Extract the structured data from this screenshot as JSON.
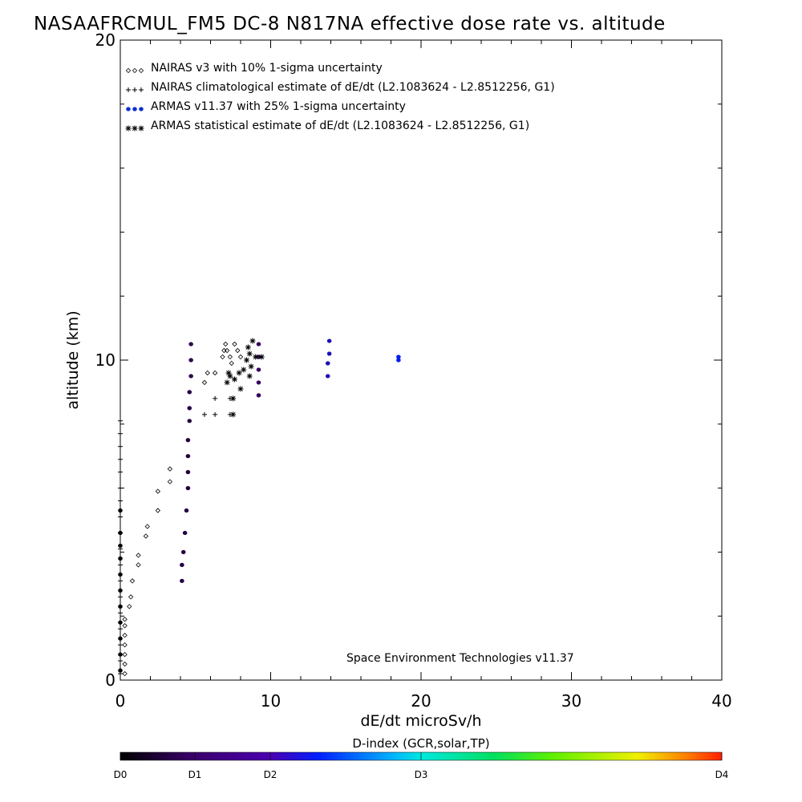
{
  "chart_data": {
    "type": "scatter",
    "title": "NASAAFRCMUL_FM5 DC-8   N817NA effective dose rate vs. altitude",
    "xlabel": "dE/dt microSv/h",
    "ylabel": "altitude (km)",
    "xlim": [
      0,
      40
    ],
    "ylim": [
      0,
      20
    ],
    "x_ticks": [
      "0",
      "10",
      "20",
      "30",
      "40"
    ],
    "y_ticks": [
      "0",
      "10",
      "20"
    ],
    "credit": "Space Environment Technologies v11.37",
    "legend_placement": "top-left",
    "legend": [
      {
        "marker": "diamond",
        "label": "NAIRAS v3 with 10% 1-sigma uncertainty"
      },
      {
        "marker": "plus",
        "label": "NAIRAS climatological estimate of dE/dt (L2.1083624 - L2.8512256, G1)"
      },
      {
        "marker": "dot",
        "label": "ARMAS v11.37 with 25% 1-sigma uncertainty"
      },
      {
        "marker": "asterisk",
        "label": "ARMAS statistical estimate of dE/dt (L2.1083624 - L2.8512256, G1)"
      }
    ],
    "series": [
      {
        "marker": "diamond",
        "points": [
          [
            0.3,
            0.2
          ],
          [
            0.3,
            0.5
          ],
          [
            0.3,
            0.8
          ],
          [
            0.3,
            1.1
          ],
          [
            0.3,
            1.4
          ],
          [
            0.3,
            1.7
          ],
          [
            0.3,
            1.9
          ],
          [
            0.6,
            2.3
          ],
          [
            0.7,
            2.6
          ],
          [
            0.8,
            3.1
          ],
          [
            1.2,
            3.6
          ],
          [
            1.2,
            3.9
          ],
          [
            1.7,
            4.5
          ],
          [
            1.8,
            4.8
          ],
          [
            2.5,
            5.3
          ],
          [
            2.5,
            5.9
          ],
          [
            3.3,
            6.2
          ],
          [
            3.3,
            6.6
          ],
          [
            5.6,
            9.3
          ],
          [
            5.8,
            9.6
          ],
          [
            6.3,
            9.6
          ],
          [
            6.8,
            10.1
          ],
          [
            6.9,
            10.3
          ],
          [
            7.0,
            10.5
          ],
          [
            7.1,
            10.3
          ],
          [
            7.3,
            10.1
          ],
          [
            7.4,
            9.9
          ],
          [
            7.6,
            10.5
          ],
          [
            7.8,
            10.3
          ],
          [
            8.0,
            10.1
          ]
        ]
      },
      {
        "marker": "plus",
        "points": [
          [
            0.0,
            8.1
          ],
          [
            0.0,
            7.7
          ],
          [
            0.0,
            7.3
          ],
          [
            0.0,
            6.9
          ],
          [
            0.0,
            6.5
          ],
          [
            0.0,
            6.0
          ],
          [
            0.0,
            5.6
          ],
          [
            0.0,
            5.1
          ],
          [
            0.0,
            4.6
          ],
          [
            0.0,
            4.1
          ],
          [
            0.0,
            3.6
          ],
          [
            0.0,
            3.1
          ],
          [
            0.0,
            2.6
          ],
          [
            0.0,
            2.1
          ],
          [
            0.0,
            1.6
          ],
          [
            0.0,
            1.1
          ],
          [
            0.0,
            0.6
          ],
          [
            0.0,
            0.2
          ],
          [
            5.6,
            8.3
          ],
          [
            6.3,
            8.3
          ],
          [
            6.3,
            8.8
          ],
          [
            7.3,
            8.8
          ],
          [
            7.3,
            8.3
          ]
        ]
      },
      {
        "marker": "dot",
        "points": [
          [
            0.0,
            5.3
          ],
          [
            0.0,
            4.6
          ],
          [
            0.0,
            4.2
          ],
          [
            0.0,
            3.8
          ],
          [
            0.0,
            3.3
          ],
          [
            0.0,
            2.8
          ],
          [
            0.0,
            2.3
          ],
          [
            0.0,
            1.8
          ],
          [
            0.0,
            1.3
          ],
          [
            0.0,
            0.8
          ],
          [
            0.0,
            0.3
          ],
          [
            4.1,
            3.1
          ],
          [
            4.1,
            3.6
          ],
          [
            4.2,
            4.0
          ],
          [
            4.3,
            4.6
          ],
          [
            4.4,
            5.3
          ],
          [
            4.5,
            6.0
          ],
          [
            4.5,
            6.5
          ],
          [
            4.5,
            7.0
          ],
          [
            4.5,
            7.5
          ],
          [
            4.6,
            8.1
          ],
          [
            4.6,
            8.5
          ],
          [
            4.6,
            9.0
          ],
          [
            4.7,
            9.5
          ],
          [
            4.7,
            10.0
          ],
          [
            4.7,
            10.5
          ],
          [
            9.2,
            8.9
          ],
          [
            9.2,
            9.3
          ],
          [
            9.2,
            9.7
          ],
          [
            9.2,
            10.1
          ],
          [
            9.2,
            10.5
          ],
          [
            13.8,
            9.5
          ],
          [
            13.8,
            9.9
          ],
          [
            13.9,
            10.2
          ],
          [
            13.9,
            10.6
          ],
          [
            18.5,
            10.0
          ],
          [
            18.5,
            10.1
          ]
        ],
        "d_index": [
          0.0,
          0.0,
          0.0,
          0.0,
          0.0,
          0.0,
          0.0,
          0.0,
          0.0,
          0.0,
          0.0,
          0.6,
          0.6,
          0.6,
          0.6,
          0.6,
          0.6,
          0.6,
          0.6,
          0.6,
          0.6,
          0.6,
          0.6,
          0.7,
          0.7,
          0.7,
          0.9,
          0.9,
          0.9,
          0.9,
          0.9,
          1.5,
          1.5,
          1.5,
          1.5,
          1.9,
          1.9
        ]
      },
      {
        "marker": "asterisk",
        "points": [
          [
            7.5,
            8.3
          ],
          [
            7.5,
            8.8
          ],
          [
            7.1,
            9.3
          ],
          [
            7.3,
            9.5
          ],
          [
            7.6,
            9.4
          ],
          [
            7.9,
            9.6
          ],
          [
            8.2,
            9.7
          ],
          [
            8.0,
            9.1
          ],
          [
            8.6,
            9.5
          ],
          [
            8.4,
            10.0
          ],
          [
            8.6,
            10.2
          ],
          [
            8.5,
            10.4
          ],
          [
            8.8,
            10.6
          ],
          [
            9.0,
            10.1
          ],
          [
            9.4,
            10.1
          ],
          [
            8.7,
            9.8
          ],
          [
            7.2,
            9.6
          ]
        ]
      }
    ],
    "colorbar": {
      "title": "D-index (GCR,solar,TP)",
      "ticks": [
        {
          "label": "D0",
          "value": 0
        },
        {
          "label": "D1",
          "value": 1
        },
        {
          "label": "D2",
          "value": 2
        },
        {
          "label": "D3",
          "value": 3
        },
        {
          "label": "D4",
          "value": 4
        }
      ]
    }
  }
}
